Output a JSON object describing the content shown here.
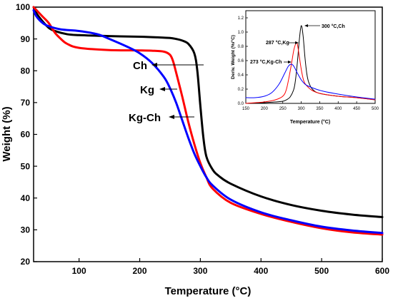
{
  "chart_data": [
    {
      "type": "line",
      "xlabel": "Temperature (°C)",
      "ylabel": "Weight (%)",
      "xlim": [
        25,
        600
      ],
      "ylim": [
        20,
        100
      ],
      "xticks": [
        100,
        200,
        300,
        400,
        500,
        600
      ],
      "yticks": [
        20,
        30,
        40,
        50,
        60,
        70,
        80,
        90,
        100
      ],
      "grid": false,
      "series": [
        {
          "name": "Ch",
          "color": "#000000",
          "x": [
            25,
            30,
            40,
            50,
            60,
            80,
            100,
            150,
            200,
            230,
            250,
            260,
            270,
            280,
            290,
            295,
            300,
            305,
            310,
            320,
            330,
            350,
            400,
            450,
            500,
            550,
            600
          ],
          "y": [
            100,
            98,
            95.5,
            93.5,
            92.5,
            91.5,
            91.2,
            90.9,
            90.7,
            90.5,
            90.3,
            90,
            89.5,
            88.5,
            85.5,
            80,
            69,
            59,
            53,
            49,
            47,
            44.5,
            40.5,
            37.8,
            36,
            34.8,
            34
          ]
        },
        {
          "name": "Kg",
          "color": "#ff0000",
          "x": [
            25,
            30,
            40,
            50,
            60,
            70,
            80,
            100,
            150,
            200,
            220,
            240,
            250,
            255,
            260,
            270,
            280,
            290,
            300,
            310,
            320,
            350,
            400,
            450,
            500,
            550,
            600
          ],
          "y": [
            100,
            99,
            97,
            95,
            92,
            90,
            88.5,
            87.2,
            86.5,
            86.4,
            86.3,
            86,
            85,
            83,
            79.5,
            72,
            64,
            57,
            51,
            46.5,
            43,
            38.5,
            35,
            32.5,
            30.5,
            29.2,
            28.5
          ]
        },
        {
          "name": "Kg-Ch",
          "color": "#0000ff",
          "x": [
            25,
            30,
            40,
            50,
            70,
            100,
            130,
            150,
            180,
            200,
            220,
            240,
            250,
            260,
            270,
            280,
            290,
            300,
            310,
            320,
            350,
            400,
            450,
            500,
            550,
            600
          ],
          "y": [
            99,
            97,
            95,
            94,
            93,
            92.5,
            91.5,
            90,
            87.5,
            85.5,
            82.5,
            78,
            74.5,
            70,
            64.5,
            59,
            54,
            50,
            46.5,
            44,
            39.5,
            35.5,
            33,
            31,
            29.8,
            29
          ]
        }
      ],
      "annotations": [
        {
          "text": "Ch",
          "series": "Ch"
        },
        {
          "text": "Kg",
          "series": "Kg"
        },
        {
          "text": "Kg-Ch",
          "series": "Kg-Ch"
        }
      ]
    },
    {
      "type": "line",
      "xlabel": "Temperature (°C)",
      "ylabel": "Deriv. Weight (%/°C)",
      "xlim": [
        150,
        500
      ],
      "ylim": [
        0,
        1.3
      ],
      "xticks": [
        150,
        200,
        250,
        300,
        350,
        400,
        450,
        500
      ],
      "yticks": [
        0.0,
        0.2,
        0.4,
        0.6,
        0.8,
        1.0,
        1.2
      ],
      "series": [
        {
          "name": "Ch",
          "color": "#000000",
          "x": [
            150,
            200,
            230,
            250,
            260,
            270,
            280,
            285,
            290,
            295,
            300,
            305,
            310,
            315,
            320,
            330,
            350,
            400,
            450,
            500
          ],
          "y": [
            0.0,
            0.01,
            0.02,
            0.03,
            0.05,
            0.09,
            0.2,
            0.35,
            0.6,
            0.9,
            1.09,
            0.95,
            0.65,
            0.42,
            0.3,
            0.2,
            0.14,
            0.1,
            0.08,
            0.05
          ]
        },
        {
          "name": "Kg",
          "color": "#ff0000",
          "x": [
            150,
            200,
            230,
            250,
            260,
            270,
            275,
            280,
            285,
            287,
            290,
            295,
            300,
            305,
            310,
            320,
            330,
            350,
            400,
            450,
            500
          ],
          "y": [
            0.0,
            0.02,
            0.05,
            0.1,
            0.2,
            0.45,
            0.6,
            0.75,
            0.84,
            0.86,
            0.82,
            0.65,
            0.48,
            0.35,
            0.28,
            0.22,
            0.18,
            0.14,
            0.1,
            0.08,
            0.05
          ]
        },
        {
          "name": "Kg-Ch",
          "color": "#0000ff",
          "x": [
            150,
            175,
            200,
            220,
            240,
            255,
            265,
            273,
            280,
            290,
            300,
            310,
            320,
            340,
            360,
            400,
            450,
            500
          ],
          "y": [
            0.08,
            0.08,
            0.1,
            0.15,
            0.27,
            0.42,
            0.52,
            0.55,
            0.52,
            0.42,
            0.33,
            0.27,
            0.24,
            0.2,
            0.17,
            0.13,
            0.09,
            0.06
          ]
        }
      ],
      "annotations": [
        {
          "text": "300 °C,Ch",
          "series": "Ch",
          "x": 300,
          "y": 1.09
        },
        {
          "text": "287 °C,Kg",
          "series": "Kg",
          "x": 287,
          "y": 0.86
        },
        {
          "text": "273 °C,Kg-Ch",
          "series": "Kg-Ch",
          "x": 273,
          "y": 0.55
        }
      ]
    }
  ]
}
